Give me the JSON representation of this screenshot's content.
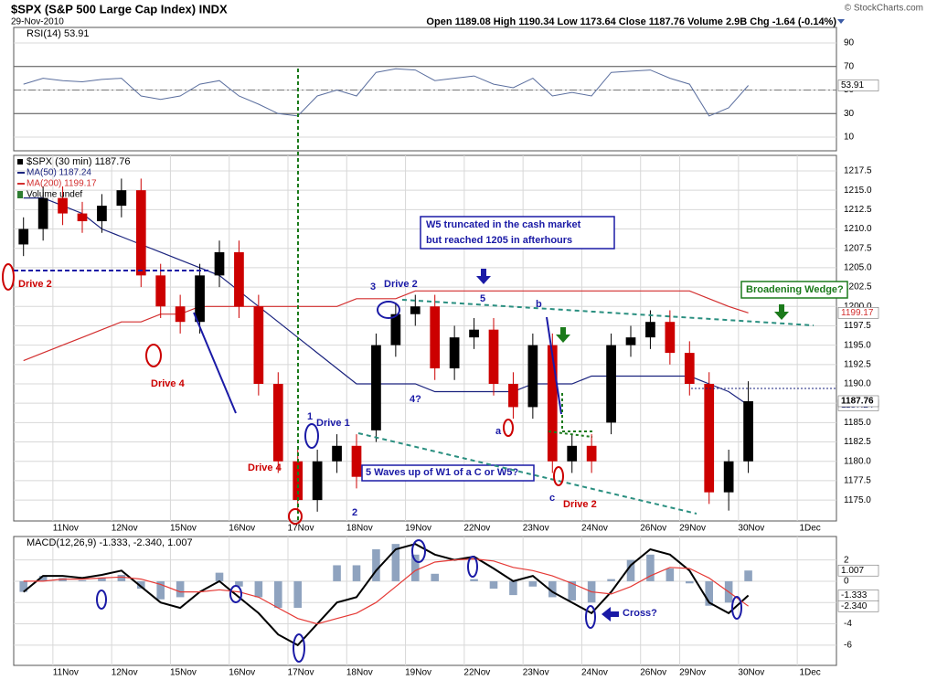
{
  "header": {
    "symbol": "$SPX (S&P 500 Large Cap Index) INDX",
    "date": "29-Nov-2010",
    "quote": "Open 1189.08  High 1190.34  Low 1173.64  Close 1187.76  Volume 2.9B  Chg -1.64 (-0.14%)",
    "credit": "© StockCharts.com"
  },
  "chart_data": [
    {
      "type": "line",
      "title": "RSI(14) 53.91",
      "color": "#5a6e9e",
      "values": [
        55,
        60,
        58,
        57,
        59,
        60,
        45,
        42,
        45,
        55,
        58,
        45,
        38,
        30,
        28,
        45,
        50,
        45,
        65,
        68,
        67,
        58,
        60,
        62,
        55,
        52,
        60,
        45,
        48,
        45,
        65,
        66,
        67,
        60,
        55,
        28,
        35,
        53.91,
        null,
        null,
        null,
        null
      ],
      "ylim": [
        -1.6,
        103.2
      ],
      "yticks": [
        10,
        30,
        50,
        70,
        90
      ],
      "grid": true
    },
    {
      "type": "candlestick",
      "title": "$SPX (30 min) 1187.76",
      "categories": [
        null,
        null,
        "11Nov",
        null,
        null,
        "12Nov",
        null,
        null,
        "15Nov",
        null,
        null,
        "16Nov",
        null,
        null,
        "17Nov",
        null,
        null,
        "18Nov",
        null,
        null,
        "19Nov",
        null,
        null,
        "22Nov",
        null,
        null,
        "23Nov",
        null,
        null,
        "24Nov",
        null,
        null,
        "26Nov",
        null,
        "29Nov",
        null,
        null,
        "30Nov",
        null,
        null,
        "1Dec",
        null
      ],
      "open": [
        1208,
        1210,
        1214,
        1212,
        1211,
        1213,
        1215,
        1204,
        1200,
        1198,
        1204,
        1207,
        1200,
        1190,
        1180,
        1175,
        1180,
        1182,
        1184,
        1195,
        1199,
        1200,
        1192,
        1196,
        1197,
        1190,
        1187,
        1195,
        1180,
        1182,
        1185,
        1195,
        1196,
        1198,
        1194,
        1190,
        1176,
        1180,
        null,
        null,
        null,
        null
      ],
      "high": [
        1211.5,
        1215.5,
        1215.5,
        1213.5,
        1214.5,
        1216.5,
        1216.5,
        1205.5,
        1201.5,
        1205.5,
        1208.5,
        1208.5,
        1201.5,
        1191.5,
        1181.5,
        1181.5,
        1183.5,
        1183.5,
        1196.5,
        1200.5,
        1201.5,
        1201.5,
        1197.5,
        1198.5,
        1198.5,
        1191.5,
        1196.5,
        1196.5,
        1183.5,
        1183.5,
        1196.5,
        1197.5,
        1199.5,
        1199.5,
        1195.5,
        1191.5,
        1181.5,
        1190.34,
        null,
        null,
        null,
        null
      ],
      "low": [
        1206.5,
        1208.5,
        1210.5,
        1209.5,
        1209.5,
        1211.5,
        1202.5,
        1198.5,
        1196.5,
        1196.5,
        1202.5,
        1198.5,
        1188.5,
        1178.5,
        1173.5,
        1173.5,
        1178.5,
        1176.5,
        1182.5,
        1193.5,
        1197.5,
        1190.5,
        1190.5,
        1194.5,
        1188.5,
        1185.5,
        1185.5,
        1178.5,
        1178.5,
        1178.5,
        1183.5,
        1193.5,
        1194.5,
        1192.5,
        1188.5,
        1174.5,
        1173.64,
        1178.5,
        null,
        null,
        null,
        null
      ],
      "close": [
        1210,
        1214,
        1212,
        1211,
        1213,
        1215,
        1204,
        1200,
        1198,
        1204,
        1207,
        1200,
        1190,
        1180,
        1175,
        1180,
        1182,
        1178,
        1195,
        1199,
        1200,
        1192,
        1196,
        1197,
        1190,
        1187,
        1195,
        1180,
        1182,
        1180,
        1195,
        1196,
        1198,
        1194,
        1190,
        1176,
        1180,
        1187.76,
        null,
        null,
        null,
        null
      ],
      "up_color": "#000000",
      "down_color": "#cc0000",
      "series": [
        {
          "name": "MA(50) 1187.24",
          "color": "#1a237e",
          "values": [
            1214,
            1214,
            1213,
            1212,
            1210,
            1209,
            1208,
            1207,
            1206,
            1205,
            1204,
            1202,
            1200,
            1198,
            1196,
            1194,
            1192,
            1190,
            1190,
            1190,
            1190,
            1189,
            1189,
            1189,
            1189,
            1189,
            1190,
            1190,
            1190,
            1191,
            1191,
            1191,
            1191,
            1191,
            1191,
            1190,
            1189,
            1187.24,
            null,
            null,
            null,
            null
          ]
        },
        {
          "name": "MA(200) 1199.17",
          "color": "#d32f2f",
          "values": [
            1193,
            1194,
            1195,
            1196,
            1197,
            1198,
            1198,
            1199,
            1199,
            1200,
            1200,
            1200,
            1200,
            1200,
            1200,
            1200,
            1200,
            1201,
            1201,
            1201,
            1202,
            1202,
            1202,
            1202,
            1202,
            1202,
            1202,
            1202,
            1202,
            1202,
            1202,
            1202,
            1202,
            1202,
            1202,
            1201,
            1200,
            1199.17,
            null,
            null,
            null,
            null
          ]
        }
      ],
      "volume_label": "Volume undef",
      "ylim": [
        1172.3,
        1219.5
      ],
      "yticks": [
        {
          "value": 1175,
          "label": "1175.0"
        },
        1177.5,
        {
          "value": 1180,
          "label": "1180.0"
        },
        1182.5,
        {
          "value": 1185,
          "label": "1185.0"
        },
        1187.5,
        {
          "value": 1190,
          "label": "1190.0"
        },
        1192.5,
        {
          "value": 1195,
          "label": "1195.0"
        },
        1197.5,
        {
          "value": 1200,
          "label": "1200.0"
        },
        1202.5,
        {
          "value": 1205,
          "label": "1205.0"
        },
        1207.5,
        {
          "value": 1210,
          "label": "1210.0"
        },
        1212.5,
        {
          "value": 1215,
          "label": "1215.0"
        },
        1217.5
      ],
      "grid": true,
      "annotations": [
        {
          "text": "Drive 2",
          "color": "#cc0000"
        },
        {
          "text": "Drive 4",
          "color": "#cc0000"
        },
        {
          "text": "Drive 4",
          "color": "#cc0000"
        },
        {
          "text": "1",
          "color": "#1a1aa6"
        },
        {
          "text": "Drive 1",
          "color": "#1a1aa6"
        },
        {
          "text": "2",
          "color": "#1a1aa6"
        },
        {
          "text": "3",
          "color": "#1a1aa6"
        },
        {
          "text": "Drive 2",
          "color": "#1a1aa6"
        },
        {
          "text": "4?",
          "color": "#1a1aa6"
        },
        {
          "text": "5",
          "color": "#1a1aa6"
        },
        {
          "text": "a",
          "color": "#1a1aa6"
        },
        {
          "text": "b",
          "color": "#1a1aa6"
        },
        {
          "text": "c",
          "color": "#1a1aa6"
        },
        {
          "text": "Drive 2",
          "color": "#cc0000"
        },
        {
          "text": "W5 truncated in the cash market",
          "color": "#1a1aa6"
        },
        {
          "text": "but reached 1205 in afterhours",
          "color": "#1a1aa6"
        },
        {
          "text": "5 Waves up of W1 of a C or W5?",
          "color": "#1a1aa6"
        },
        {
          "text": "Broadening Wedge?",
          "color": "#1b7a1b"
        }
      ]
    },
    {
      "type": "macd",
      "title": "MACD(12,26,9) -1.333, -2.340, 1.007",
      "series": [
        {
          "name": "MACD",
          "color": "#000000",
          "values": [
            -1,
            0.5,
            0.5,
            0.3,
            0.6,
            1,
            -0.5,
            -2,
            -2.5,
            -1,
            0,
            -1.5,
            -3,
            -5,
            -6,
            -4,
            -2,
            -1.5,
            1,
            3,
            3.5,
            2.5,
            2,
            2.3,
            1.2,
            0,
            0.5,
            -1,
            -2,
            -3,
            -1,
            1.5,
            3,
            2.5,
            1,
            -2,
            -3,
            -1.333,
            null,
            null,
            null,
            null
          ]
        },
        {
          "name": "Signal",
          "color": "#e53935",
          "values": [
            0,
            0,
            0.2,
            0.2,
            0.3,
            0.4,
            0.2,
            -0.3,
            -1,
            -1,
            -0.8,
            -1,
            -1.5,
            -2.5,
            -3.5,
            -4,
            -3.5,
            -3,
            -2,
            -0.5,
            1,
            1.8,
            2,
            2.1,
            1.9,
            1.3,
            1,
            0.5,
            -0.2,
            -1,
            -1.2,
            -0.5,
            0.5,
            1.3,
            1.2,
            0.3,
            -1,
            -2.34,
            null,
            null,
            null,
            null
          ],
          "value_labels": [
            null,
            null,
            null,
            null,
            null,
            null,
            null,
            null,
            null,
            null,
            null,
            null,
            null,
            null,
            null,
            null,
            null,
            null,
            null,
            null,
            null,
            null,
            null,
            null,
            null,
            null,
            null,
            null,
            null,
            null,
            null,
            null,
            null,
            null,
            null,
            null,
            null,
            "-2.340",
            null,
            null,
            null,
            null
          ]
        },
        {
          "name": "Histogram",
          "color": "#8fa3bf",
          "values": [
            -1,
            0.5,
            0.3,
            0.1,
            0.3,
            0.6,
            -0.7,
            -1.7,
            -1.5,
            0,
            0.8,
            -0.5,
            -1.5,
            -2.5,
            -2.5,
            0,
            1.5,
            1.5,
            3,
            3.5,
            2.5,
            0.7,
            0,
            0.2,
            -0.7,
            -1.3,
            -0.5,
            -1.5,
            -1.8,
            -2,
            0.2,
            2,
            2.5,
            1.2,
            -0.2,
            -2.3,
            -2,
            1.007,
            null,
            null,
            null,
            null
          ]
        }
      ],
      "ylim": [
        -7.9,
        4.2
      ],
      "yticks": [
        -6,
        -4,
        -2,
        0,
        2
      ],
      "grid": true,
      "annotations": [
        {
          "text": "Cross?",
          "color": "#1a1aa6"
        }
      ]
    }
  ]
}
